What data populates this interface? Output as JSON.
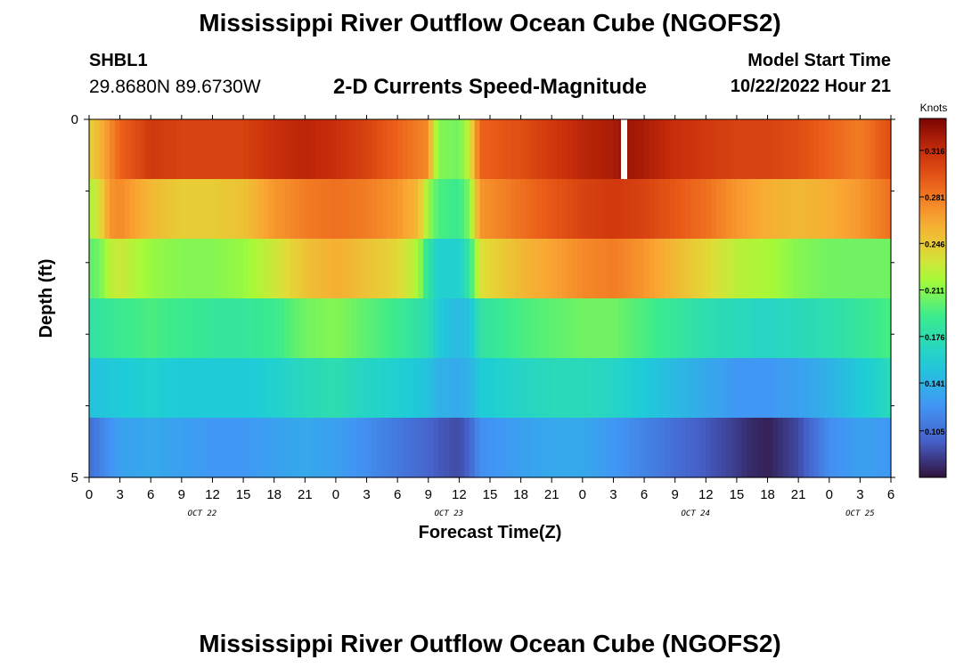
{
  "header": {
    "title": "Mississippi River Outflow Ocean Cube (NGOFS2)",
    "station_id": "SHBL1",
    "station_coords": "29.8680N  89.6730W",
    "subtitle": "2-D Currents Speed-Magnitude",
    "model_start_label": "Model Start Time",
    "model_start_value": "10/22/2022 Hour 21"
  },
  "footer": {
    "title_repeat": "Mississippi River Outflow Ocean Cube (NGOFS2)"
  },
  "chart_data": {
    "type": "heatmap",
    "title": "2-D Currents Speed-Magnitude",
    "xlabel": "Forecast Time(Z)",
    "ylabel": "Depth (ft)",
    "x_range_hours": [
      0,
      78
    ],
    "x_tick_labels": [
      "0",
      "3",
      "6",
      "9",
      "12",
      "15",
      "18",
      "21",
      "0",
      "3",
      "6",
      "9",
      "12",
      "15",
      "18",
      "21",
      "0",
      "3",
      "6",
      "9",
      "12",
      "15",
      "18",
      "21",
      "0",
      "3",
      "6"
    ],
    "date_labels": [
      {
        "label": "OCT 22",
        "hour": 11
      },
      {
        "label": "OCT 23",
        "hour": 35
      },
      {
        "label": "OCT 24",
        "hour": 59
      },
      {
        "label": "OCT 25",
        "hour": 75
      }
    ],
    "y_range_ft": [
      0,
      5
    ],
    "y_tick_labels": [
      "0",
      "5"
    ],
    "colorbar": {
      "label": "Knots",
      "min": 0.07,
      "max": 0.34,
      "ticks": [
        "0.316",
        "0.281",
        "0.246",
        "0.211",
        "0.176",
        "0.141",
        "0.105"
      ]
    },
    "layers": [
      {
        "depth_band": "layer-1",
        "hours": [
          0,
          3,
          6,
          9,
          12,
          15,
          18,
          21,
          24,
          27,
          30,
          33,
          33.5,
          34,
          36,
          37,
          38,
          42,
          45,
          48,
          51,
          51.8,
          52,
          54,
          57,
          60,
          63,
          66,
          69,
          72,
          75,
          78
        ],
        "values": [
          0.24,
          0.29,
          0.31,
          0.305,
          0.305,
          0.305,
          0.315,
          0.32,
          0.315,
          0.305,
          0.29,
          0.275,
          0.23,
          0.21,
          0.205,
          0.23,
          0.29,
          0.3,
          0.31,
          0.32,
          0.325,
          0.33,
          0.33,
          0.325,
          0.315,
          0.31,
          0.305,
          0.305,
          0.3,
          0.29,
          0.28,
          0.3
        ]
      },
      {
        "depth_band": "layer-2",
        "hours": [
          0,
          1,
          2,
          3,
          6,
          9,
          12,
          15,
          18,
          21,
          24,
          27,
          30,
          32,
          33,
          34,
          36,
          37,
          38,
          42,
          45,
          48,
          51,
          54,
          57,
          60,
          63,
          66,
          69,
          72,
          75,
          78
        ],
        "values": [
          0.22,
          0.235,
          0.27,
          0.275,
          0.255,
          0.245,
          0.245,
          0.25,
          0.27,
          0.28,
          0.285,
          0.28,
          0.27,
          0.255,
          0.215,
          0.195,
          0.19,
          0.21,
          0.27,
          0.285,
          0.295,
          0.305,
          0.31,
          0.305,
          0.295,
          0.285,
          0.27,
          0.26,
          0.255,
          0.26,
          0.27,
          0.285
        ]
      },
      {
        "depth_band": "layer-3",
        "hours": [
          0,
          1,
          2,
          3,
          6,
          9,
          12,
          15,
          18,
          21,
          24,
          27,
          30,
          32,
          33,
          34,
          36,
          37,
          38,
          42,
          45,
          48,
          51,
          54,
          57,
          60,
          63,
          66,
          69,
          72,
          75,
          78
        ],
        "values": [
          0.2,
          0.205,
          0.225,
          0.23,
          0.215,
          0.21,
          0.21,
          0.215,
          0.23,
          0.25,
          0.26,
          0.25,
          0.24,
          0.22,
          0.18,
          0.16,
          0.16,
          0.185,
          0.235,
          0.255,
          0.265,
          0.275,
          0.28,
          0.27,
          0.255,
          0.24,
          0.225,
          0.22,
          0.21,
          0.205,
          0.205,
          0.205
        ]
      },
      {
        "depth_band": "layer-4",
        "hours": [
          0,
          3,
          6,
          9,
          12,
          15,
          18,
          21,
          24,
          27,
          30,
          33,
          34,
          36,
          37,
          38,
          42,
          45,
          48,
          51,
          54,
          57,
          60,
          63,
          66,
          69,
          72,
          75,
          78
        ],
        "values": [
          0.18,
          0.19,
          0.195,
          0.19,
          0.185,
          0.185,
          0.19,
          0.205,
          0.21,
          0.2,
          0.19,
          0.175,
          0.155,
          0.145,
          0.15,
          0.18,
          0.195,
          0.2,
          0.205,
          0.205,
          0.195,
          0.185,
          0.175,
          0.17,
          0.165,
          0.17,
          0.175,
          0.185,
          0.195
        ]
      },
      {
        "depth_band": "layer-5",
        "hours": [
          0,
          3,
          6,
          9,
          12,
          15,
          18,
          21,
          24,
          27,
          30,
          33,
          34,
          36,
          37,
          38,
          42,
          45,
          48,
          51,
          54,
          57,
          60,
          63,
          66,
          69,
          72,
          75,
          78
        ],
        "values": [
          0.15,
          0.155,
          0.16,
          0.155,
          0.155,
          0.155,
          0.16,
          0.17,
          0.175,
          0.165,
          0.16,
          0.15,
          0.14,
          0.135,
          0.14,
          0.155,
          0.165,
          0.17,
          0.17,
          0.165,
          0.155,
          0.145,
          0.135,
          0.125,
          0.125,
          0.13,
          0.14,
          0.155,
          0.17
        ]
      },
      {
        "depth_band": "layer-6",
        "hours": [
          0,
          3,
          6,
          9,
          12,
          15,
          18,
          21,
          24,
          27,
          30,
          33,
          34,
          36,
          37,
          38,
          42,
          45,
          48,
          51,
          54,
          57,
          60,
          63,
          64,
          66,
          67,
          69,
          72,
          75,
          78
        ],
        "values": [
          0.105,
          0.13,
          0.135,
          0.13,
          0.125,
          0.125,
          0.13,
          0.135,
          0.13,
          0.12,
          0.11,
          0.1,
          0.095,
          0.09,
          0.1,
          0.12,
          0.13,
          0.135,
          0.135,
          0.125,
          0.115,
          0.105,
          0.095,
          0.085,
          0.08,
          0.075,
          0.08,
          0.09,
          0.12,
          0.13,
          0.125
        ]
      }
    ],
    "gap_marker_hour": 52,
    "grid": false,
    "legend_placement": "right colorbar"
  }
}
